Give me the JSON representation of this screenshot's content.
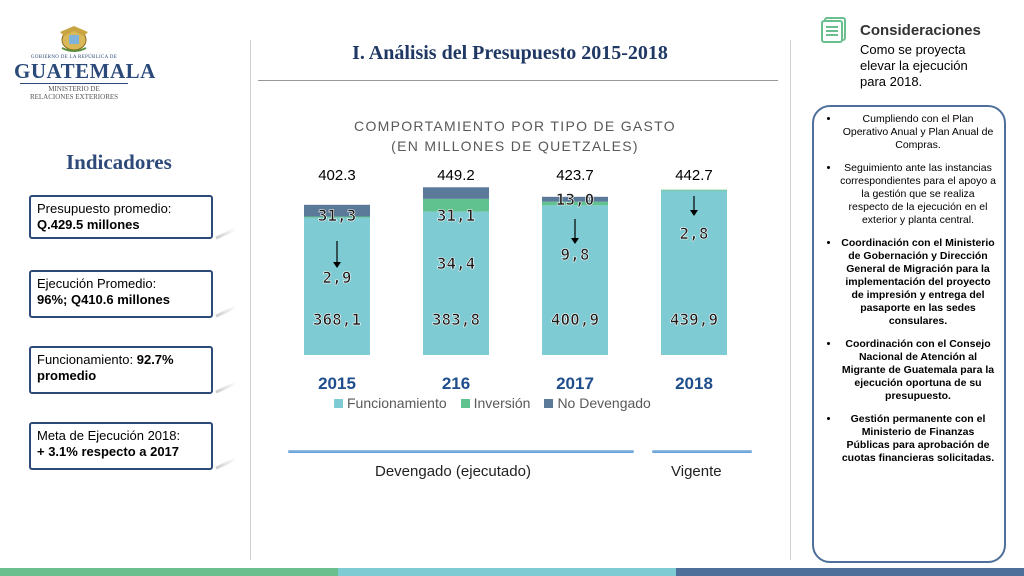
{
  "logo": {
    "republic": "GOBIERNO DE LA REPÚBLICA DE",
    "country": "GUATEMALA",
    "ministry_line1": "MINISTERIO DE",
    "ministry_line2": "RELACIONES EXTERIORES"
  },
  "slide": {
    "title": "I. Análisis del Presupuesto 2015-2018",
    "indicators_title": "Indicadores"
  },
  "indicators": [
    {
      "label": "Presupuesto promedio:",
      "value": "Q.429.5 millones"
    },
    {
      "label": "Ejecución Promedio:",
      "value": "96%;  Q410.6  millones"
    },
    {
      "label": "Funcionamiento: ",
      "value_inline": "92.7%",
      "value": "promedio"
    },
    {
      "label": "Meta de Ejecución 2018:",
      "value": "+ 3.1% respecto a 2017"
    }
  ],
  "chart_data": {
    "type": "bar",
    "stacked": true,
    "title_line1": "COMPORTAMIENTO POR TIPO DE GASTO",
    "title_line2": "(EN MILLONES DE QUETZALES)",
    "categories": [
      "2015",
      "216",
      "2017",
      "2018"
    ],
    "totals": [
      "402.3",
      "449.2",
      "423.7",
      "442.7"
    ],
    "series": [
      {
        "name": "Funcionamiento",
        "color": "#7ecbd3",
        "values": [
          368.1,
          383.8,
          400.9,
          439.9
        ],
        "labels": [
          "368,1",
          "383,8",
          "400,9",
          "439,9"
        ]
      },
      {
        "name": "Inversión",
        "color": "#5fc28f",
        "values": [
          2.9,
          34.4,
          9.8,
          2.8
        ],
        "labels": [
          "2,9",
          "34,4",
          "9,8",
          "2,8"
        ]
      },
      {
        "name": "No Devengado",
        "color": "#5b7a9a",
        "values": [
          31.3,
          31.1,
          13.0,
          0
        ],
        "labels": [
          "31,3",
          "31,1",
          "13,0",
          ""
        ]
      }
    ],
    "ylim": [
      0,
      450
    ],
    "grid": false,
    "legend": "bottom"
  },
  "brackets": {
    "executed": "Devengado (ejecutado)",
    "current": "Vigente"
  },
  "considerations": {
    "title": "Consideraciones",
    "intro": "Como se proyecta elevar la ejecución para 2018.",
    "items": [
      {
        "text": "Cumpliendo con el Plan Operativo Anual y Plan Anual de Compras.",
        "bold": false
      },
      {
        "text": "Seguimiento ante las instancias correspondientes para el apoyo a la gestión que se realiza respecto de la ejecución en el exterior y planta central.",
        "bold": false
      },
      {
        "text": "Coordinación con el Ministerio de Gobernación y Dirección General de Migración para la implementación del proyecto de impresión y entrega del pasaporte en las sedes consulares.",
        "bold": true
      },
      {
        "text": "Coordinación con el Consejo Nacional de Atención al Migrante de Guatemala para la ejecución oportuna de su presupuesto.",
        "bold": true
      },
      {
        "text": "Gestión permanente con el Ministerio de Finanzas Públicas para aprobación de cuotas financieras solicitadas.",
        "bold": true
      }
    ]
  },
  "colors": {
    "title": "#1f3864",
    "box_border": "#2e4a7a",
    "year_labels": "#1f4e8c"
  }
}
